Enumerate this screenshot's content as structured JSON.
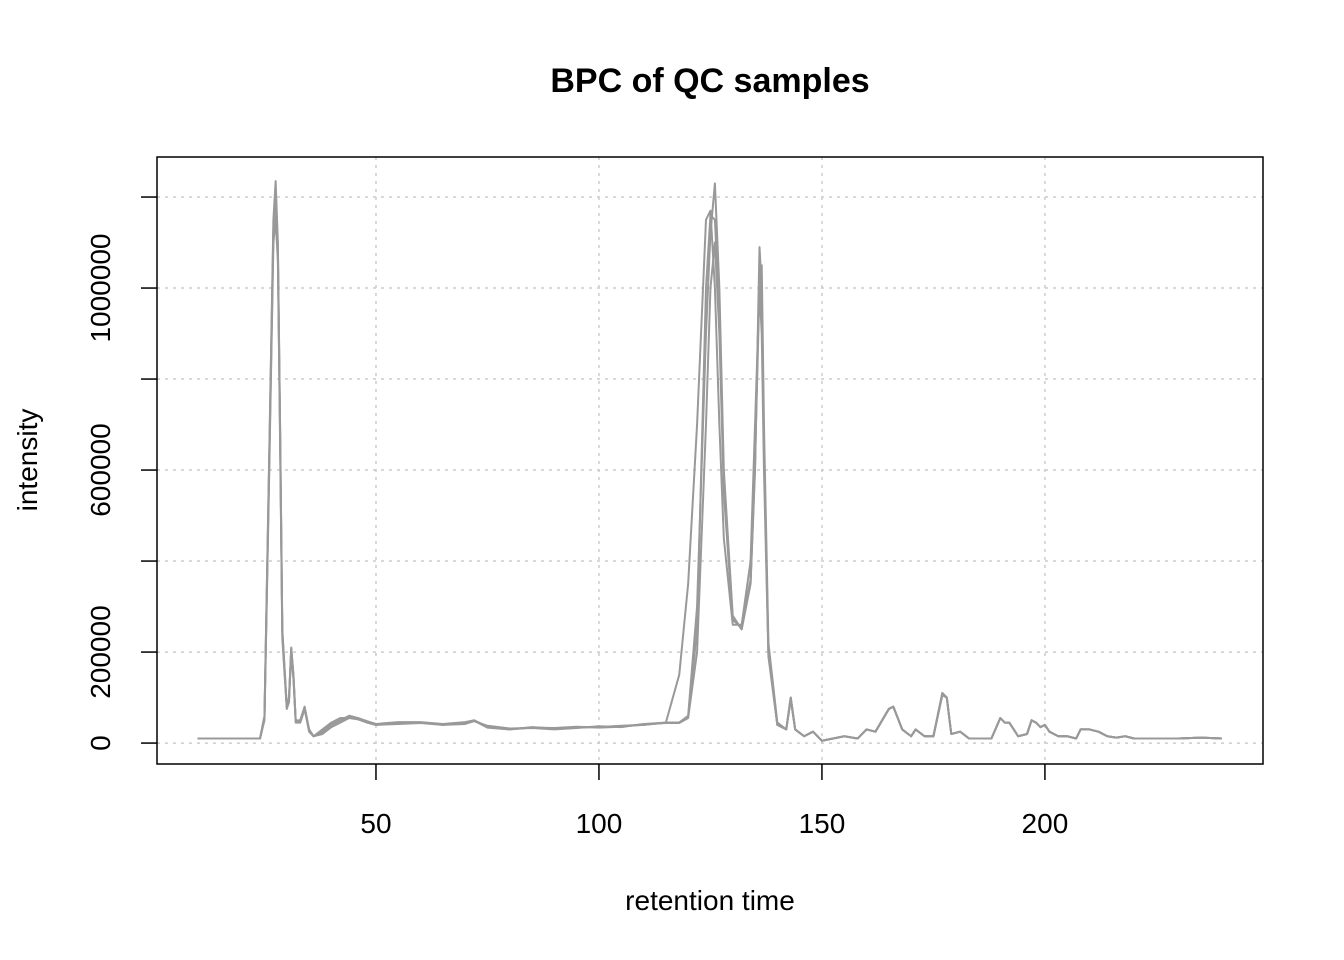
{
  "chart_data": {
    "type": "line",
    "title": "BPC of QC samples",
    "x_label": "retention time",
    "y_label": "intensity",
    "x": [
      10,
      24,
      25,
      26,
      27,
      27.5,
      28,
      28.5,
      29,
      30,
      30.5,
      31,
      31.5,
      32,
      33,
      34,
      35,
      36,
      38,
      40,
      42,
      44,
      46,
      48,
      50,
      55,
      60,
      65,
      70,
      72,
      75,
      80,
      85,
      90,
      95,
      100,
      105,
      110,
      115,
      118,
      120,
      122,
      124,
      125,
      126,
      127,
      128,
      130,
      132,
      134,
      135,
      136,
      136.5,
      137,
      138,
      140,
      142,
      143,
      144,
      146,
      148,
      149,
      150,
      155,
      158,
      160,
      162,
      165,
      166,
      168,
      170,
      171,
      173,
      175,
      177,
      178,
      179,
      181,
      183,
      185,
      188,
      190,
      191,
      192,
      194,
      196,
      197,
      198,
      199,
      200,
      201,
      203,
      205,
      207,
      208,
      210,
      212,
      214,
      216,
      218,
      220,
      225,
      230,
      235,
      239.7
    ],
    "series": [
      {
        "color": "#999999",
        "values": [
          10000,
          10000,
          60000,
          600000,
          1150000,
          1235000,
          1100000,
          700000,
          250000,
          80000,
          100000,
          210000,
          150000,
          50000,
          50000,
          80000,
          30000,
          15000,
          25000,
          40000,
          50000,
          60000,
          55000,
          45000,
          40000,
          45000,
          45000,
          40000,
          45000,
          50000,
          35000,
          30000,
          35000,
          32000,
          35000,
          35000,
          38000,
          40000,
          45000,
          45000,
          60000,
          300000,
          900000,
          1120000,
          1230000,
          1000000,
          600000,
          280000,
          250000,
          350000,
          600000,
          1090000,
          1000000,
          650000,
          200000,
          40000,
          30000,
          100000,
          30000,
          15000,
          25000,
          15000,
          5000,
          15000,
          10000,
          30000,
          25000,
          75000,
          80000,
          30000,
          15000,
          30000,
          15000,
          15000,
          110000,
          100000,
          20000,
          25000,
          10000,
          10000,
          10000,
          55000,
          45000,
          45000,
          15000,
          20000,
          50000,
          45000,
          35000,
          40000,
          25000,
          15000,
          15000,
          10000,
          30000,
          30000,
          25000,
          15000,
          12000,
          15000,
          10000,
          10000,
          10000,
          12000,
          10000
        ]
      },
      {
        "color": "#999999",
        "values": [
          10000,
          10000,
          55000,
          580000,
          1120000,
          1180000,
          1080000,
          680000,
          240000,
          80000,
          95000,
          205000,
          145000,
          50000,
          45000,
          75000,
          30000,
          15000,
          30000,
          45000,
          55000,
          55000,
          52000,
          45000,
          40000,
          42000,
          44000,
          40000,
          42000,
          48000,
          38000,
          32000,
          33000,
          30000,
          33000,
          37000,
          35000,
          42000,
          45000,
          150000,
          350000,
          700000,
          1150000,
          1170000,
          1000000,
          700000,
          450000,
          260000,
          260000,
          400000,
          700000,
          1000000,
          1050000,
          700000,
          220000,
          45000,
          30000,
          95000,
          30000,
          15000,
          25000,
          15000,
          5000,
          15000,
          10000,
          30000,
          25000,
          75000,
          80000,
          30000,
          15000,
          30000,
          15000,
          15000,
          105000,
          100000,
          20000,
          25000,
          10000,
          10000,
          10000,
          55000,
          45000,
          45000,
          15000,
          20000,
          50000,
          45000,
          35000,
          40000,
          25000,
          15000,
          15000,
          10000,
          30000,
          30000,
          25000,
          15000,
          12000,
          15000,
          10000,
          10000,
          10000,
          12000,
          10000
        ]
      },
      {
        "color": "#999999",
        "values": [
          10000,
          10000,
          50000,
          560000,
          1100000,
          1150000,
          1060000,
          660000,
          230000,
          75000,
          90000,
          200000,
          140000,
          45000,
          45000,
          75000,
          25000,
          15000,
          20000,
          35000,
          45000,
          55000,
          55000,
          48000,
          42000,
          46000,
          46000,
          42000,
          46000,
          50000,
          36000,
          31000,
          34000,
          33000,
          36000,
          34000,
          36000,
          41000,
          44000,
          44000,
          55000,
          200000,
          700000,
          1000000,
          1100000,
          900000,
          550000,
          270000,
          255000,
          360000,
          620000,
          1000000,
          900000,
          600000,
          190000,
          40000,
          30000,
          100000,
          30000,
          15000,
          25000,
          15000,
          5000,
          15000,
          10000,
          30000,
          25000,
          75000,
          80000,
          30000,
          15000,
          30000,
          15000,
          15000,
          110000,
          100000,
          20000,
          25000,
          10000,
          10000,
          10000,
          55000,
          45000,
          45000,
          15000,
          20000,
          50000,
          45000,
          35000,
          40000,
          25000,
          15000,
          15000,
          10000,
          30000,
          30000,
          25000,
          15000,
          12000,
          15000,
          10000,
          10000,
          10000,
          12000,
          10000
        ]
      },
      {
        "color": "#999999",
        "values": [
          10000,
          10000,
          58000,
          590000,
          1130000,
          1200000,
          1090000,
          690000,
          245000,
          78000,
          98000,
          208000,
          148000,
          48000,
          48000,
          78000,
          28000,
          15000,
          25000,
          40000,
          50000,
          58000,
          54000,
          46000,
          41000,
          44000,
          45000,
          41000,
          44000,
          49000,
          34000,
          30000,
          34000,
          31000,
          34000,
          36000,
          37000,
          40000,
          45000,
          45000,
          58000,
          250000,
          1000000,
          1160000,
          1150000,
          950000,
          580000,
          275000,
          250000,
          355000,
          610000,
          1050000,
          980000,
          640000,
          200000,
          40000,
          30000,
          100000,
          30000,
          15000,
          25000,
          15000,
          5000,
          15000,
          10000,
          30000,
          25000,
          75000,
          80000,
          30000,
          15000,
          30000,
          15000,
          15000,
          110000,
          100000,
          20000,
          25000,
          10000,
          10000,
          10000,
          55000,
          45000,
          45000,
          15000,
          20000,
          50000,
          45000,
          35000,
          40000,
          25000,
          15000,
          15000,
          10000,
          30000,
          30000,
          25000,
          15000,
          12000,
          15000,
          10000,
          10000,
          10000,
          12000,
          10000
        ]
      }
    ],
    "xlim": [
      0.9,
      248.9
    ],
    "ylim": [
      -46000,
      1288000
    ],
    "xticks": [
      50,
      100,
      150,
      200
    ],
    "yticks": [
      0,
      200000,
      600000,
      1000000
    ],
    "yminor_ticks": [
      400000,
      800000,
      1200000
    ],
    "grid": true
  }
}
